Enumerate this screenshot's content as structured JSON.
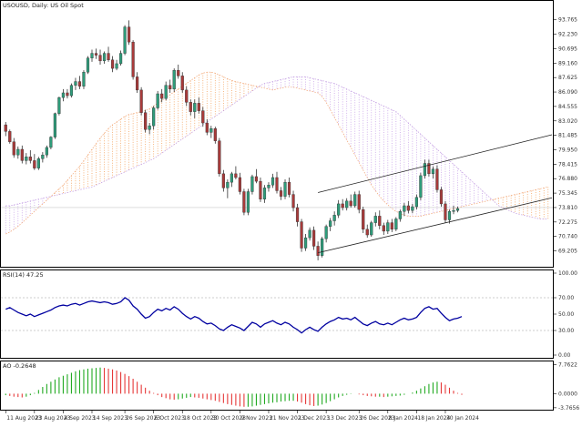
{
  "window": {
    "title": "USOUSD, Daily:  US Oil Spot"
  },
  "chart_data": [
    {
      "type": "candlestick",
      "title": "USOUSD, Daily:  US Oil Spot",
      "ylim": [
        68.0,
        94.9
      ],
      "y_ticks": [
        "93.765",
        "92.230",
        "90.695",
        "89.160",
        "87.625",
        "86.090",
        "84.555",
        "83.020",
        "81.485",
        "79.950",
        "78.415",
        "76.880",
        "75.345",
        "73.810",
        "72.275",
        "70.740",
        "69.205"
      ],
      "current_price": "73.810",
      "x_ticks": [
        "11 Aug 2023",
        "23 Aug 2023",
        "4 Sep 2023",
        "14 Sep 2023",
        "26 Sep 2023",
        "6 Oct 2023",
        "18 Oct 2023",
        "30 Oct 2023",
        "9 Nov 2023",
        "21 Nov 2023",
        "1 Dec 2023",
        "13 Dec 2023",
        "26 Dec 2023",
        "8 Jan 2024",
        "18 Jan 2024",
        "30 Jan 2024"
      ],
      "ohlc": [
        [
          82.6,
          82.9,
          81.4,
          81.9
        ],
        [
          81.9,
          82.1,
          80.6,
          80.8
        ],
        [
          80.8,
          81.2,
          79.1,
          79.4
        ],
        [
          79.4,
          80.3,
          79.0,
          80.0
        ],
        [
          80.0,
          80.4,
          78.5,
          78.8
        ],
        [
          78.8,
          79.6,
          78.4,
          79.2
        ],
        [
          79.2,
          79.9,
          78.5,
          78.8
        ],
        [
          78.8,
          79.5,
          77.8,
          78.0
        ],
        [
          78.0,
          79.2,
          77.8,
          79.0
        ],
        [
          79.0,
          79.7,
          78.6,
          79.4
        ],
        [
          79.4,
          80.4,
          79.1,
          80.2
        ],
        [
          80.2,
          81.4,
          80.0,
          81.3
        ],
        [
          81.3,
          83.9,
          81.1,
          83.8
        ],
        [
          83.8,
          85.6,
          83.6,
          85.5
        ],
        [
          85.5,
          86.4,
          85.1,
          86.0
        ],
        [
          86.0,
          86.4,
          85.4,
          85.7
        ],
        [
          85.7,
          87.0,
          85.5,
          86.8
        ],
        [
          86.8,
          87.6,
          86.3,
          87.2
        ],
        [
          87.2,
          87.8,
          86.4,
          86.7
        ],
        [
          86.7,
          88.4,
          86.4,
          88.2
        ],
        [
          88.2,
          89.9,
          88.0,
          89.7
        ],
        [
          89.7,
          90.6,
          89.3,
          90.2
        ],
        [
          90.2,
          90.7,
          89.6,
          90.0
        ],
        [
          90.0,
          90.6,
          89.0,
          89.4
        ],
        [
          89.4,
          90.4,
          89.1,
          90.2
        ],
        [
          90.2,
          90.9,
          89.3,
          89.5
        ],
        [
          89.5,
          89.9,
          88.2,
          88.6
        ],
        [
          88.6,
          89.5,
          88.4,
          89.1
        ],
        [
          89.1,
          90.5,
          88.9,
          90.2
        ],
        [
          90.2,
          93.2,
          90.0,
          93.0
        ],
        [
          93.0,
          93.7,
          91.1,
          91.4
        ],
        [
          91.4,
          91.6,
          87.4,
          87.7
        ],
        [
          87.7,
          88.2,
          86.0,
          86.3
        ],
        [
          86.3,
          86.6,
          83.6,
          83.9
        ],
        [
          83.9,
          84.2,
          81.8,
          82.1
        ],
        [
          82.1,
          82.8,
          81.6,
          82.5
        ],
        [
          82.5,
          84.6,
          82.1,
          84.4
        ],
        [
          84.4,
          86.2,
          84.2,
          85.9
        ],
        [
          85.9,
          86.4,
          85.0,
          85.4
        ],
        [
          85.4,
          87.2,
          85.2,
          86.8
        ],
        [
          86.8,
          87.4,
          86.0,
          86.4
        ],
        [
          86.4,
          88.6,
          86.1,
          88.4
        ],
        [
          88.4,
          89.0,
          87.5,
          87.8
        ],
        [
          87.8,
          88.2,
          86.0,
          86.3
        ],
        [
          86.3,
          86.7,
          84.6,
          85.0
        ],
        [
          85.0,
          85.3,
          83.6,
          84.0
        ],
        [
          84.0,
          85.3,
          83.3,
          84.9
        ],
        [
          84.9,
          85.5,
          83.8,
          84.1
        ],
        [
          84.1,
          84.5,
          82.4,
          82.8
        ],
        [
          82.8,
          83.2,
          81.5,
          81.8
        ],
        [
          81.8,
          82.5,
          81.2,
          82.2
        ],
        [
          82.2,
          82.4,
          80.6,
          80.9
        ],
        [
          80.9,
          81.2,
          77.1,
          77.4
        ],
        [
          77.4,
          77.8,
          75.5,
          75.9
        ],
        [
          75.9,
          76.8,
          74.8,
          76.5
        ],
        [
          76.5,
          77.6,
          76.0,
          77.4
        ],
        [
          77.4,
          78.2,
          76.8,
          77.0
        ],
        [
          77.0,
          77.5,
          75.2,
          75.5
        ],
        [
          75.5,
          75.8,
          73.0,
          73.3
        ],
        [
          73.3,
          75.8,
          73.0,
          75.5
        ],
        [
          75.5,
          77.3,
          75.2,
          77.1
        ],
        [
          77.1,
          77.9,
          76.4,
          76.6
        ],
        [
          76.6,
          77.0,
          74.4,
          74.7
        ],
        [
          74.7,
          76.2,
          74.3,
          75.9
        ],
        [
          75.9,
          76.5,
          75.5,
          76.2
        ],
        [
          76.2,
          77.4,
          75.9,
          77.0
        ],
        [
          77.0,
          77.6,
          75.3,
          75.6
        ],
        [
          75.6,
          76.0,
          74.6,
          75.0
        ],
        [
          75.0,
          76.8,
          74.7,
          76.5
        ],
        [
          76.5,
          77.0,
          74.9,
          75.2
        ],
        [
          75.2,
          75.6,
          73.4,
          73.8
        ],
        [
          73.8,
          74.2,
          71.8,
          72.3
        ],
        [
          72.3,
          72.6,
          69.1,
          69.5
        ],
        [
          69.5,
          71.0,
          69.2,
          70.6
        ],
        [
          70.6,
          71.7,
          70.3,
          71.4
        ],
        [
          71.4,
          71.8,
          69.3,
          69.7
        ],
        [
          69.7,
          70.2,
          68.2,
          68.7
        ],
        [
          68.7,
          70.7,
          68.5,
          70.5
        ],
        [
          70.5,
          72.0,
          70.1,
          71.8
        ],
        [
          71.8,
          72.7,
          71.3,
          72.4
        ],
        [
          72.4,
          73.4,
          71.9,
          73.0
        ],
        [
          73.0,
          74.6,
          72.7,
          74.2
        ],
        [
          74.2,
          74.7,
          73.5,
          73.8
        ],
        [
          73.8,
          74.8,
          73.5,
          74.5
        ],
        [
          74.5,
          75.2,
          73.8,
          74.0
        ],
        [
          74.0,
          75.5,
          73.8,
          75.2
        ],
        [
          75.2,
          75.6,
          73.2,
          73.6
        ],
        [
          73.6,
          73.9,
          71.1,
          71.5
        ],
        [
          71.5,
          72.0,
          70.6,
          70.9
        ],
        [
          70.9,
          72.4,
          70.7,
          72.2
        ],
        [
          72.2,
          73.3,
          71.8,
          72.9
        ],
        [
          72.9,
          73.5,
          71.5,
          71.9
        ],
        [
          71.9,
          72.2,
          70.9,
          71.3
        ],
        [
          71.3,
          72.5,
          71.0,
          72.2
        ],
        [
          72.2,
          72.6,
          71.2,
          71.5
        ],
        [
          71.5,
          72.8,
          71.3,
          72.6
        ],
        [
          72.6,
          73.6,
          72.3,
          73.4
        ],
        [
          73.4,
          74.3,
          72.9,
          74.0
        ],
        [
          74.0,
          74.5,
          73.2,
          73.5
        ],
        [
          73.5,
          74.2,
          73.2,
          73.9
        ],
        [
          73.9,
          75.2,
          73.6,
          74.9
        ],
        [
          74.9,
          77.5,
          74.6,
          77.2
        ],
        [
          77.2,
          78.9,
          76.9,
          78.5
        ],
        [
          78.5,
          78.9,
          77.1,
          77.4
        ],
        [
          77.4,
          78.2,
          76.9,
          77.9
        ],
        [
          77.9,
          78.3,
          75.4,
          75.7
        ],
        [
          75.7,
          76.0,
          73.9,
          74.2
        ],
        [
          74.2,
          74.5,
          72.2,
          72.5
        ],
        [
          72.5,
          73.6,
          72.1,
          73.4
        ],
        [
          73.4,
          74.0,
          73.1,
          73.5
        ],
        [
          73.5,
          73.9,
          73.3,
          73.7
        ]
      ],
      "channel_lines": [
        {
          "from": [
            76,
            69.0
          ],
          "to": [
            114,
            72.9
          ]
        },
        {
          "from": [
            76,
            75.4
          ],
          "to": [
            114,
            79.5
          ]
        }
      ],
      "cloud": {
        "start_index": 0,
        "span_a": [
          71.0,
          71.2,
          71.5,
          71.8,
          72.2,
          72.6,
          73.0,
          73.4,
          73.8,
          74.2,
          74.6,
          75.0,
          75.4,
          75.8,
          76.2,
          76.7,
          77.2,
          77.7,
          78.2,
          78.8,
          79.4,
          80.0,
          80.6,
          81.2,
          81.7,
          82.2,
          82.6,
          82.9,
          83.2,
          83.5,
          83.7,
          83.8,
          83.9,
          84.0,
          84.1,
          84.3,
          84.6,
          84.9,
          85.2,
          85.5,
          85.8,
          86.1,
          86.4,
          86.7,
          87.0,
          87.3,
          87.6,
          87.9,
          88.1,
          88.2,
          88.2,
          88.1,
          87.9,
          87.7,
          87.5,
          87.3,
          87.2,
          87.1,
          87.0,
          86.9,
          86.8,
          86.7,
          86.6,
          86.5,
          86.4,
          86.3,
          86.4,
          86.5,
          86.6,
          86.6,
          86.6,
          86.5,
          86.4,
          86.3,
          86.2,
          86.1,
          86.0,
          85.6,
          85.0,
          84.2,
          83.4,
          82.6,
          81.8,
          81.0,
          80.2,
          79.4,
          78.6,
          77.8,
          77.0,
          76.2,
          75.6,
          75.0,
          74.5,
          74.1,
          73.7,
          73.4,
          73.2,
          73.0,
          72.9,
          72.9,
          72.9,
          72.9,
          73.0,
          73.1,
          73.2,
          73.3,
          73.4,
          73.5,
          73.6,
          73.7,
          73.8,
          73.9,
          74.0,
          74.1,
          74.2,
          74.3,
          74.4,
          74.5,
          74.6,
          74.7,
          74.8,
          74.9,
          75.0,
          75.1,
          75.2,
          75.3,
          75.4,
          75.5,
          75.6,
          75.7,
          75.8,
          75.9,
          76.0
        ],
        "span_b": [
          74.0,
          74.0,
          74.1,
          74.2,
          74.3,
          74.4,
          74.5,
          74.6,
          74.7,
          74.8,
          74.9,
          75.0,
          75.1,
          75.2,
          75.3,
          75.4,
          75.5,
          75.6,
          75.7,
          75.8,
          75.9,
          76.0,
          76.2,
          76.4,
          76.6,
          76.8,
          77.0,
          77.2,
          77.4,
          77.6,
          77.8,
          78.0,
          78.2,
          78.4,
          78.6,
          78.8,
          79.0,
          79.3,
          79.6,
          79.9,
          80.2,
          80.5,
          80.8,
          81.1,
          81.4,
          81.7,
          82.0,
          82.3,
          82.6,
          82.9,
          83.2,
          83.5,
          83.8,
          84.1,
          84.4,
          84.7,
          85.0,
          85.3,
          85.6,
          85.9,
          86.2,
          86.5,
          86.8,
          87.0,
          87.1,
          87.2,
          87.3,
          87.4,
          87.5,
          87.6,
          87.7,
          87.7,
          87.7,
          87.7,
          87.6,
          87.5,
          87.4,
          87.3,
          87.2,
          87.1,
          87.0,
          86.8,
          86.6,
          86.4,
          86.2,
          86.0,
          85.8,
          85.6,
          85.4,
          85.2,
          85.0,
          84.8,
          84.6,
          84.4,
          84.2,
          84.0,
          83.6,
          83.2,
          82.8,
          82.4,
          82.0,
          81.6,
          81.2,
          80.8,
          80.4,
          80.0,
          79.6,
          79.2,
          78.8,
          78.4,
          78.0,
          77.6,
          77.2,
          76.8,
          76.4,
          76.0,
          75.6,
          75.2,
          74.8,
          74.4,
          74.0,
          73.8,
          73.6,
          73.4,
          73.2,
          73.1,
          73.0,
          72.9,
          72.8,
          72.7,
          72.6,
          72.6,
          72.6
        ]
      }
    },
    {
      "type": "line",
      "title": "RSI(14) 47.25",
      "ylim": [
        0,
        100
      ],
      "y_ticks": [
        "100.00",
        "70.00",
        "50.00",
        "30.00",
        "0.00"
      ],
      "levels": [
        70,
        30
      ],
      "color": "#0000a0",
      "values": [
        56,
        58,
        55,
        52,
        50,
        48,
        50,
        47,
        49,
        51,
        53,
        55,
        58,
        60,
        61,
        60,
        62,
        63,
        61,
        63,
        65,
        66,
        65,
        64,
        65,
        64,
        62,
        63,
        65,
        70,
        67,
        60,
        56,
        50,
        45,
        47,
        52,
        56,
        54,
        57,
        55,
        59,
        56,
        51,
        47,
        44,
        47,
        45,
        41,
        38,
        39,
        36,
        32,
        30,
        34,
        37,
        35,
        33,
        30,
        35,
        40,
        38,
        34,
        38,
        40,
        42,
        39,
        37,
        40,
        38,
        34,
        31,
        27,
        31,
        34,
        31,
        29,
        34,
        38,
        41,
        43,
        46,
        44,
        45,
        43,
        46,
        42,
        38,
        36,
        39,
        41,
        38,
        37,
        39,
        37,
        40,
        43,
        45,
        43,
        44,
        46,
        52,
        57,
        59,
        56,
        57,
        51,
        46,
        42,
        44,
        45,
        47
      ]
    },
    {
      "type": "bar",
      "title": "AO -0.2648",
      "ylim": [
        -3.8,
        7.9
      ],
      "y_ticks": [
        "7.7622",
        "0.0000",
        "-3.7656"
      ],
      "zero_line": true,
      "color_up": "#22aa22",
      "color_down": "#e63838",
      "values": [
        -0.4,
        -0.6,
        -0.8,
        -0.9,
        -1.0,
        -0.8,
        -0.4,
        0.2,
        1.0,
        1.8,
        2.6,
        3.2,
        3.8,
        4.4,
        4.8,
        5.2,
        5.6,
        6.0,
        6.3,
        6.5,
        6.7,
        6.8,
        6.9,
        7.0,
        6.9,
        6.7,
        6.5,
        6.2,
        5.8,
        5.3,
        4.7,
        4.0,
        3.2,
        2.4,
        1.6,
        0.8,
        0.2,
        -0.4,
        -0.9,
        -1.2,
        -1.5,
        -1.6,
        -1.5,
        -1.3,
        -1.1,
        -0.9,
        -1.0,
        -1.1,
        -1.3,
        -1.5,
        -1.7,
        -1.9,
        -2.2,
        -2.5,
        -2.8,
        -3.0,
        -3.2,
        -3.4,
        -3.5,
        -3.5,
        -3.4,
        -3.2,
        -3.0,
        -2.8,
        -2.6,
        -2.4,
        -2.3,
        -2.1,
        -2.0,
        -1.9,
        -1.9,
        -2.1,
        -2.4,
        -2.8,
        -3.1,
        -3.3,
        -3.2,
        -2.9,
        -2.5,
        -2.0,
        -1.5,
        -1.0,
        -0.6,
        -0.3,
        -0.1,
        0.0,
        -0.2,
        -0.4,
        -0.6,
        -0.7,
        -0.8,
        -0.8,
        -0.9,
        -0.8,
        -0.7,
        -0.6,
        -0.5,
        -0.3,
        0.0,
        0.3,
        0.8,
        1.4,
        2.0,
        2.6,
        3.0,
        3.2,
        3.0,
        2.4,
        1.6,
        0.8,
        0.2,
        -0.3
      ]
    }
  ]
}
